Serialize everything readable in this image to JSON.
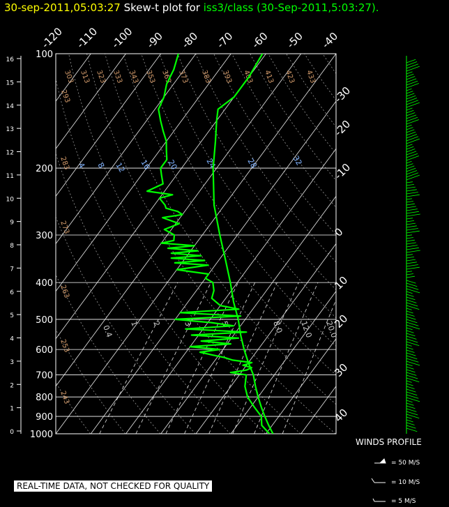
{
  "title": {
    "date": "30-sep-2011,05:03:27",
    "label": "Skew-t plot for",
    "source": "iss3/class (30-Sep-2011,5:03:27)",
    "dot": "."
  },
  "disclaimer": "REAL-TIME DATA, NOT CHECKED FOR QUALITY",
  "winds": {
    "title": "WINDS PROFILE",
    "legend": [
      "= 50 M/S",
      "= 10 M/S",
      "= 5 M/S"
    ]
  },
  "colors": {
    "background": "#000000",
    "grid": "#ffffff",
    "trace": "#00ff00",
    "title_date": "#ffff00",
    "isopleth": "#7fb2ff",
    "dry_adiabat": "#d29a6a"
  },
  "chart_data": {
    "type": "line",
    "title": "Skew-t plot for iss3/class (30-Sep-2011,5:03:27)",
    "pressure_levels": [
      100,
      200,
      300,
      400,
      500,
      600,
      700,
      800,
      900,
      1000
    ],
    "km_ticks": [
      "16",
      "15",
      "14",
      "13",
      "12",
      "11",
      "10",
      "9",
      "8",
      "7",
      "6",
      "5",
      "4",
      "3",
      "2",
      "1",
      "0"
    ],
    "temp_top_labels": [
      "-120",
      "-110",
      "-100",
      "-90",
      "-80",
      "-70",
      "-60",
      "-50",
      "-40"
    ],
    "temp_right_labels": [
      "-30",
      "-20",
      "-10",
      "0",
      "10",
      "20",
      "30",
      "40"
    ],
    "dry_adiabat_labels": [
      "303",
      "313",
      "323",
      "333",
      "343",
      "353",
      "363",
      "373",
      "383",
      "393",
      "403",
      "413",
      "423",
      "433",
      "293",
      "283",
      "273",
      "263",
      "253",
      "243"
    ],
    "mixing_ratio_upper": [
      "4",
      "8",
      "12",
      "16",
      "20",
      "24",
      "28",
      "32"
    ],
    "mixing_ratio_lower": [
      "0.4",
      "1",
      "2",
      "3",
      "5",
      "8.0",
      "12.0",
      "20.0"
    ],
    "ylim": [
      1000,
      100
    ],
    "xlim": [
      -40,
      40
    ],
    "series": [
      {
        "kind": "temperature",
        "points": [
          [
            1000,
            22
          ],
          [
            950,
            19
          ],
          [
            900,
            16
          ],
          [
            850,
            13
          ],
          [
            800,
            10
          ],
          [
            750,
            7
          ],
          [
            700,
            4
          ],
          [
            650,
            0
          ],
          [
            600,
            -4
          ],
          [
            550,
            -8
          ],
          [
            500,
            -12
          ],
          [
            450,
            -17
          ],
          [
            400,
            -22
          ],
          [
            350,
            -28
          ],
          [
            300,
            -35
          ],
          [
            250,
            -43
          ],
          [
            200,
            -51
          ],
          [
            170,
            -56
          ],
          [
            150,
            -60
          ],
          [
            140,
            -62
          ],
          [
            130,
            -60
          ],
          [
            115,
            -60
          ],
          [
            100,
            -61
          ]
        ]
      },
      {
        "kind": "dewpoint",
        "points": [
          [
            1000,
            21
          ],
          [
            950,
            17
          ],
          [
            900,
            15
          ],
          [
            850,
            11
          ],
          [
            800,
            7
          ],
          [
            750,
            4
          ],
          [
            700,
            2
          ],
          [
            690,
            -3
          ],
          [
            680,
            1
          ],
          [
            670,
            2
          ],
          [
            660,
            -1
          ],
          [
            650,
            1
          ],
          [
            640,
            -5
          ],
          [
            630,
            -8
          ],
          [
            620,
            -12
          ],
          [
            610,
            -16
          ],
          [
            600,
            -11
          ],
          [
            590,
            -20
          ],
          [
            580,
            -9
          ],
          [
            570,
            -18
          ],
          [
            560,
            -8
          ],
          [
            550,
            -22
          ],
          [
            540,
            -7
          ],
          [
            530,
            -25
          ],
          [
            520,
            -12
          ],
          [
            510,
            -19
          ],
          [
            500,
            -30
          ],
          [
            490,
            -12
          ],
          [
            480,
            -30
          ],
          [
            470,
            -14
          ],
          [
            460,
            -20
          ],
          [
            450,
            -22
          ],
          [
            440,
            -24
          ],
          [
            420,
            -25
          ],
          [
            400,
            -27
          ],
          [
            390,
            -30
          ],
          [
            380,
            -30
          ],
          [
            370,
            -40
          ],
          [
            360,
            -32
          ],
          [
            355,
            -42
          ],
          [
            350,
            -34
          ],
          [
            345,
            -44
          ],
          [
            340,
            -36
          ],
          [
            335,
            -45
          ],
          [
            330,
            -38
          ],
          [
            325,
            -47
          ],
          [
            320,
            -40
          ],
          [
            315,
            -50
          ],
          [
            310,
            -47
          ],
          [
            300,
            -48
          ],
          [
            290,
            -52
          ],
          [
            280,
            -49
          ],
          [
            270,
            -55
          ],
          [
            265,
            -50
          ],
          [
            260,
            -52
          ],
          [
            255,
            -56
          ],
          [
            250,
            -57
          ],
          [
            240,
            -60
          ],
          [
            235,
            -57
          ],
          [
            230,
            -65
          ],
          [
            220,
            -62
          ],
          [
            210,
            -64
          ],
          [
            200,
            -66
          ],
          [
            190,
            -66
          ],
          [
            180,
            -68
          ],
          [
            170,
            -70
          ],
          [
            160,
            -73
          ],
          [
            150,
            -76
          ],
          [
            140,
            -79
          ],
          [
            130,
            -80
          ],
          [
            120,
            -82
          ],
          [
            110,
            -83
          ],
          [
            100,
            -85
          ]
        ]
      }
    ]
  }
}
